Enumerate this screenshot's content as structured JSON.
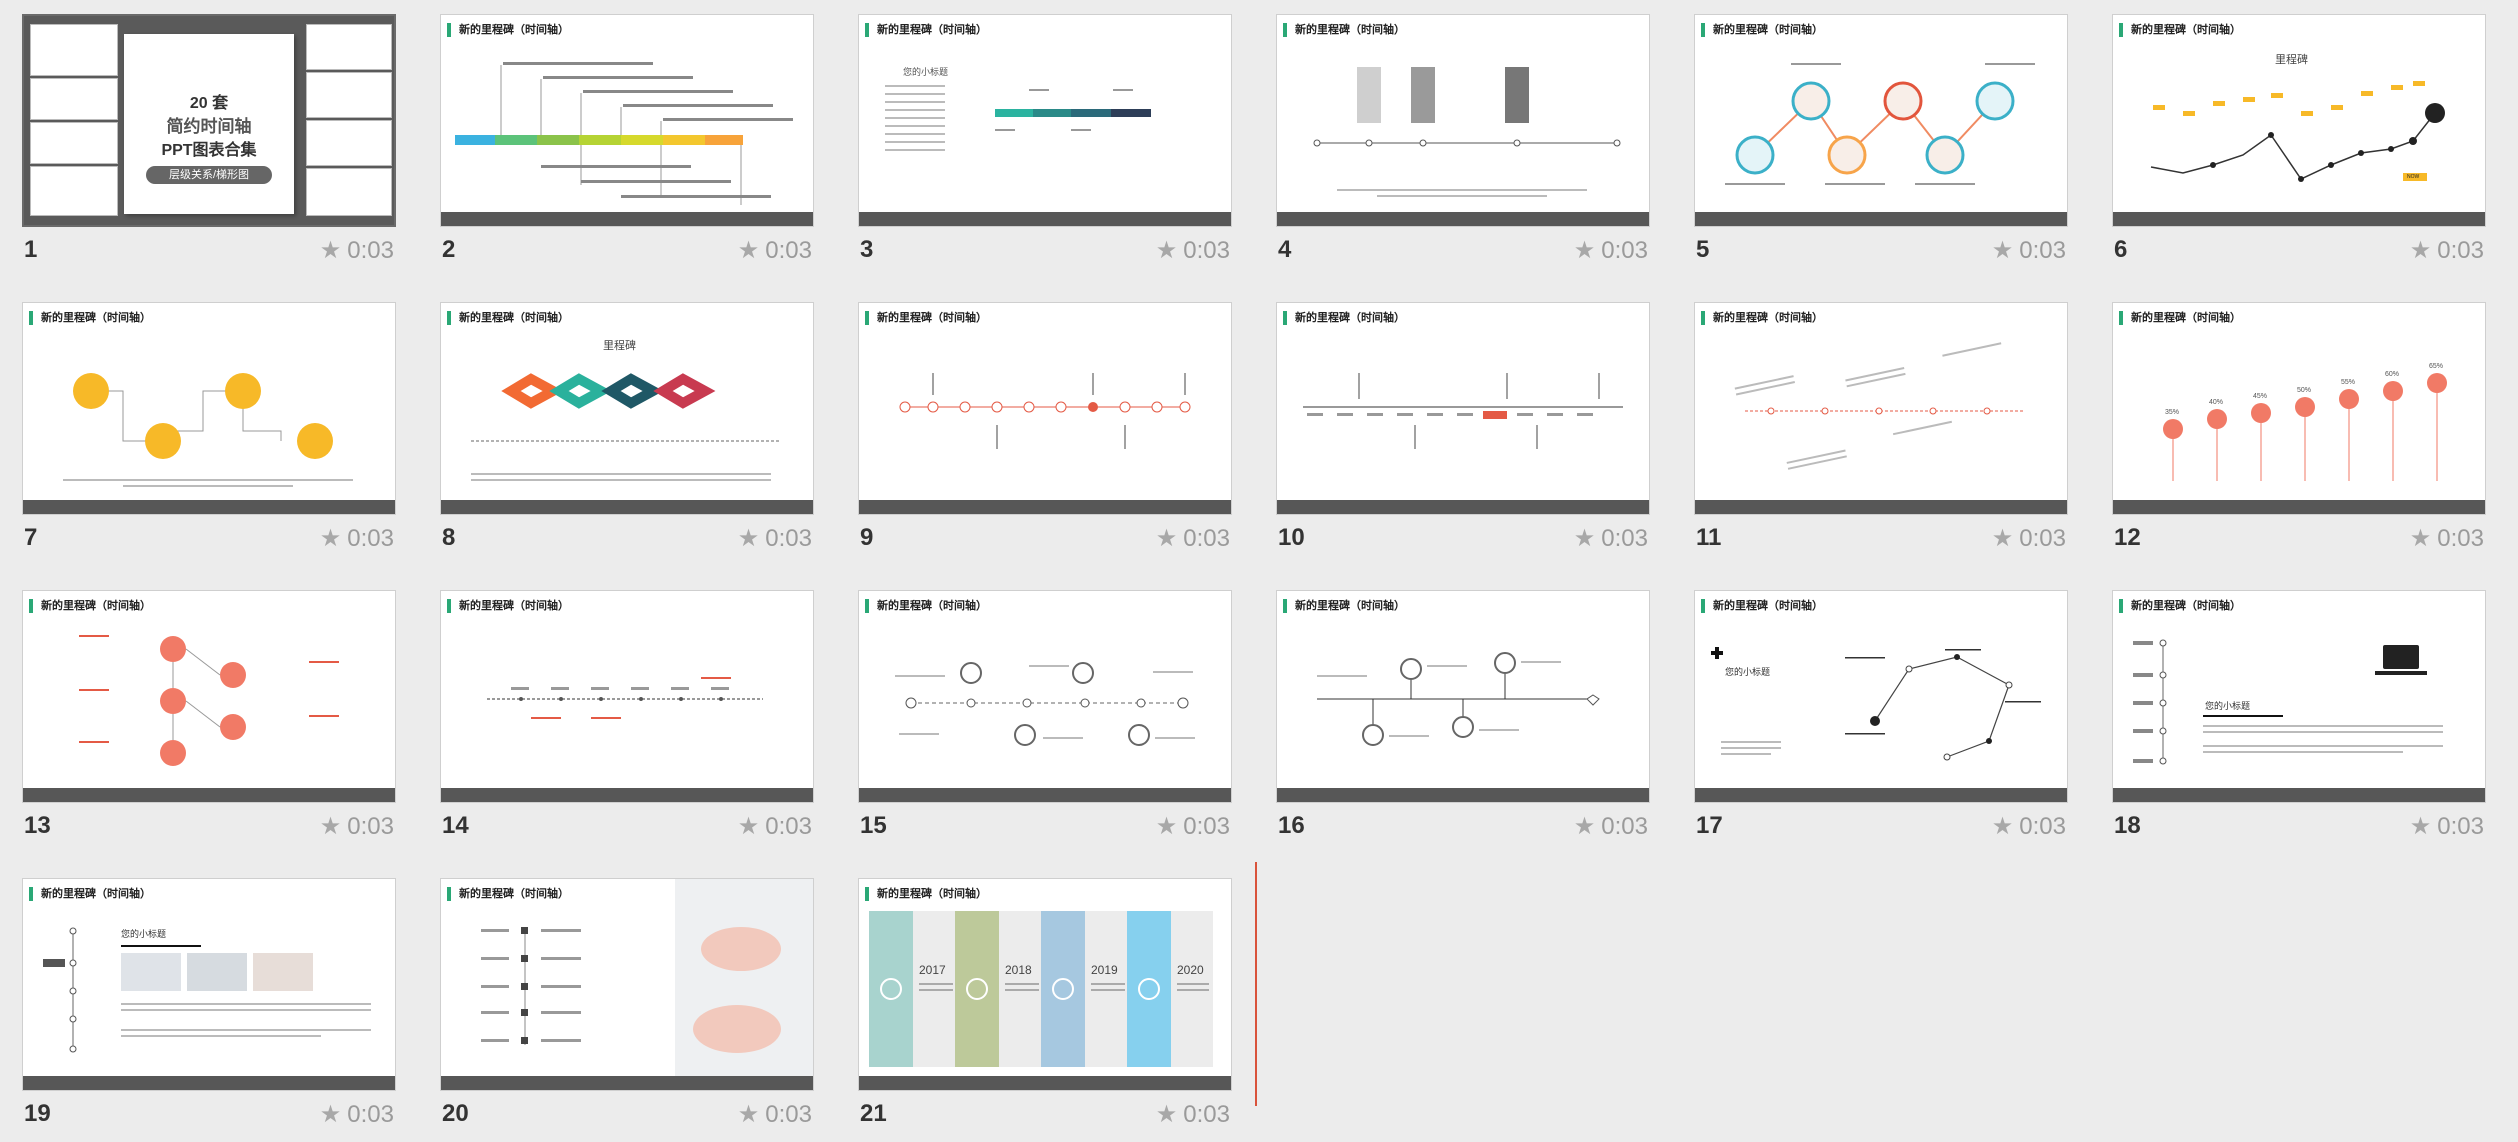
{
  "timing": "0:03",
  "slide_title": "新的里程碑（时间轴）",
  "slide1": {
    "line1": "20 套",
    "line2": "简约时间轴",
    "line3": "PPT图表合集",
    "badge": "层级关系/梯形图"
  },
  "numbers": [
    "1",
    "2",
    "3",
    "4",
    "5",
    "6",
    "7",
    "8",
    "9",
    "10",
    "11",
    "12",
    "13",
    "14",
    "15",
    "16",
    "17",
    "18",
    "19",
    "20",
    "21"
  ],
  "labels": {
    "milestone": "里程碑",
    "subtitle": "您的小标题",
    "time_node": "时间轴",
    "now": "NOW",
    "years": [
      "2017",
      "2018",
      "2019",
      "2020"
    ],
    "percents": [
      "35%",
      "40%",
      "45%",
      "50%",
      "55%",
      "60%",
      "65%"
    ]
  },
  "colors": {
    "accent": "#2aa876",
    "footer": "#575757",
    "selected_bg": "#5a5a5a",
    "orange": "#f15a24",
    "yellow": "#f7b928",
    "salmon": "#f17a66",
    "insert_line": "#d9533b"
  },
  "icons": {
    "timing": "star-icon"
  }
}
